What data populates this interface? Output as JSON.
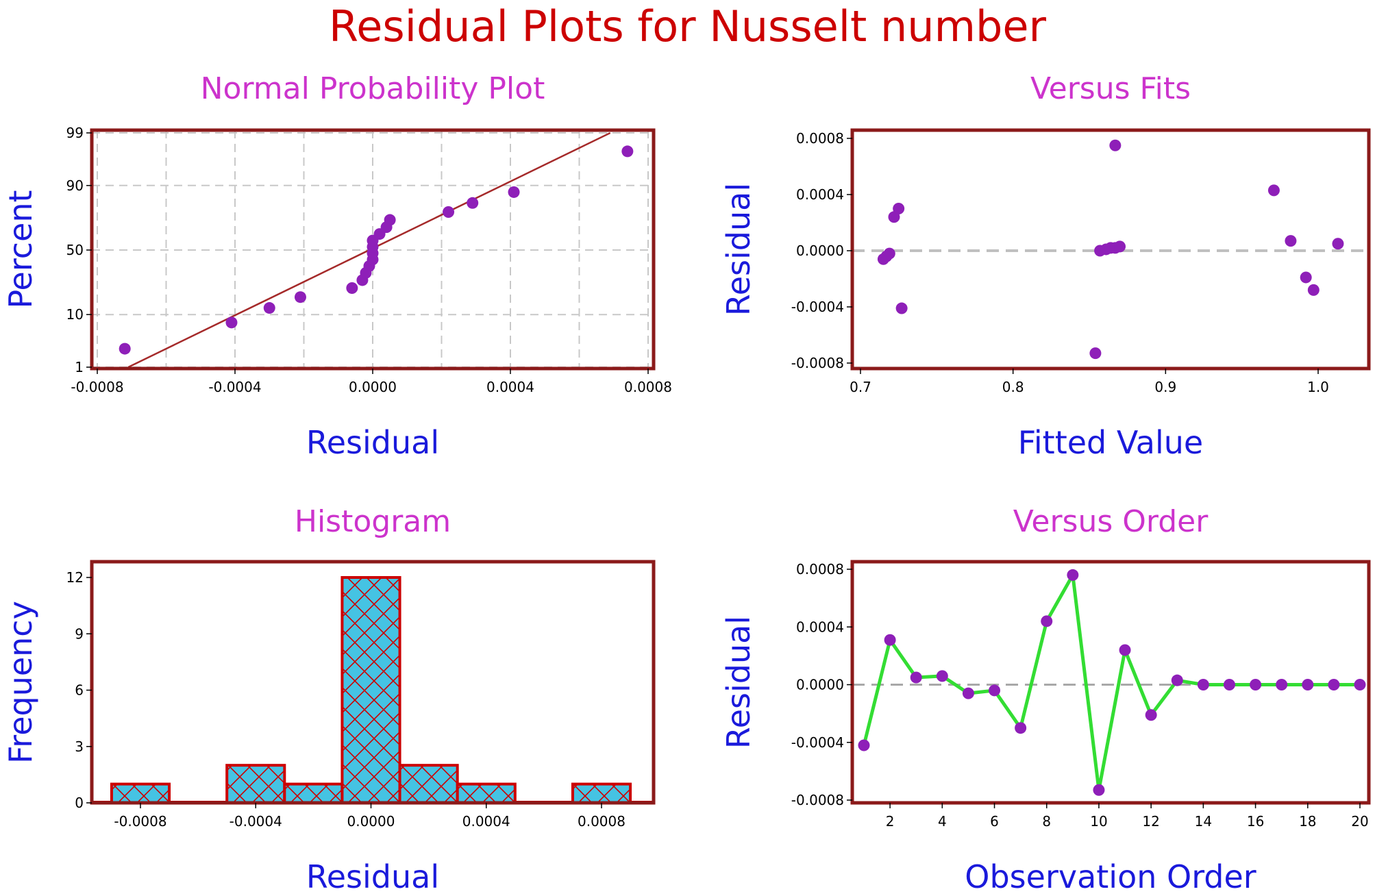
{
  "title": "Residual Plots for Nusselt number",
  "colors": {
    "title": "#cc0000",
    "panel_title": "#cc33cc",
    "axis_label": "#1a1adb",
    "frame": "#8b1a1a",
    "point": "#8e1fb8",
    "fit_line": "#a52a2a",
    "hist_fill": "#45c3e3",
    "hist_edge": "#cc0000",
    "order_line": "#33dd33"
  },
  "chart_data": [
    {
      "type": "scatter",
      "title": "Normal Probability Plot",
      "xlabel": "Residual",
      "ylabel": "Percent",
      "xlim": [
        -0.0008,
        0.0008
      ],
      "ylim": [
        1,
        99
      ],
      "y_scale": "normal-probability",
      "xticks": [
        "-0.0008",
        "-0.0004",
        "0.0000",
        "0.0004",
        "0.0008"
      ],
      "yticks": [
        "1",
        "10",
        "50",
        "90",
        "99"
      ],
      "ytick_values": [
        1,
        10,
        50,
        90,
        99
      ],
      "grid": true,
      "fit_line": [
        [
          -0.00071,
          1
        ],
        [
          0.00069,
          99
        ]
      ],
      "points": [
        [
          -0.00072,
          2.5
        ],
        [
          -0.00041,
          7.5
        ],
        [
          -0.0003,
          12.5
        ],
        [
          -0.00021,
          17.5
        ],
        [
          -6e-05,
          22.5
        ],
        [
          -3e-05,
          27.5
        ],
        [
          -2e-05,
          32.5
        ],
        [
          -1e-05,
          37.5
        ],
        [
          0.0,
          42.5
        ],
        [
          0.0,
          47.5
        ],
        [
          0.0,
          52.5
        ],
        [
          0.0,
          57.5
        ],
        [
          2e-05,
          62.5
        ],
        [
          4e-05,
          67.5
        ],
        [
          5e-05,
          72.5
        ],
        [
          0.00022,
          77.5
        ],
        [
          0.00029,
          82.5
        ],
        [
          0.00041,
          87.5
        ],
        [
          0.00074,
          97.5
        ]
      ]
    },
    {
      "type": "scatter",
      "title": "Versus Fits",
      "xlabel": "Fitted Value",
      "ylabel": "Residual",
      "xlim": [
        0.7,
        1.013
      ],
      "ylim": [
        -0.0008,
        0.0008
      ],
      "xticks": [
        "0.7",
        "0.8",
        "0.9",
        "1.0"
      ],
      "xtick_values": [
        0.7,
        0.8,
        0.9,
        1.0
      ],
      "yticks": [
        "-0.0008",
        "-0.0004",
        "0.0000",
        "0.0004",
        "0.0008"
      ],
      "ytick_values": [
        -0.0008,
        -0.0004,
        0,
        0.0004,
        0.0008
      ],
      "reference_line": 0,
      "points": [
        [
          0.715,
          -6e-05
        ],
        [
          0.717,
          -4e-05
        ],
        [
          0.719,
          -2e-05
        ],
        [
          0.722,
          0.00024
        ],
        [
          0.725,
          0.0003
        ],
        [
          0.727,
          -0.00041
        ],
        [
          0.854,
          -0.00073
        ],
        [
          0.857,
          0.0
        ],
        [
          0.861,
          1e-05
        ],
        [
          0.864,
          2e-05
        ],
        [
          0.867,
          2e-05
        ],
        [
          0.867,
          0.00075
        ],
        [
          0.87,
          3e-05
        ],
        [
          0.971,
          0.00043
        ],
        [
          0.982,
          7e-05
        ],
        [
          0.992,
          -0.00019
        ],
        [
          0.997,
          -0.00028
        ],
        [
          1.013,
          5e-05
        ]
      ]
    },
    {
      "type": "bar",
      "title": "Histogram",
      "xlabel": "Residual",
      "ylabel": "Frequency",
      "xlim": [
        -0.00092,
        0.00092
      ],
      "ylim": [
        0,
        12.6
      ],
      "xticks": [
        "-0.0008",
        "-0.0004",
        "0.0000",
        "0.0004",
        "0.0008"
      ],
      "xtick_values": [
        -0.0008,
        -0.0004,
        0,
        0.0004,
        0.0008
      ],
      "yticks": [
        "0",
        "3",
        "6",
        "9",
        "12"
      ],
      "ytick_values": [
        0,
        3,
        6,
        9,
        12
      ],
      "bin_width": 0.0002,
      "bins": [
        {
          "center": -0.0008,
          "count": 1
        },
        {
          "center": -0.0006,
          "count": 0
        },
        {
          "center": -0.0004,
          "count": 2
        },
        {
          "center": -0.0002,
          "count": 1
        },
        {
          "center": 0.0,
          "count": 12
        },
        {
          "center": 0.0002,
          "count": 2
        },
        {
          "center": 0.0004,
          "count": 1
        },
        {
          "center": 0.0006,
          "count": 0
        },
        {
          "center": 0.0008,
          "count": 1
        }
      ]
    },
    {
      "type": "line",
      "title": "Versus Order",
      "xlabel": "Observation Order",
      "ylabel": "Residual",
      "xlim": [
        1,
        20
      ],
      "ylim": [
        -0.0008,
        0.0008
      ],
      "xticks": [
        "2",
        "4",
        "6",
        "8",
        "10",
        "12",
        "14",
        "16",
        "18",
        "20"
      ],
      "xtick_values": [
        2,
        4,
        6,
        8,
        10,
        12,
        14,
        16,
        18,
        20
      ],
      "yticks": [
        "-0.0008",
        "-0.0004",
        "0.0000",
        "0.0004",
        "0.0008"
      ],
      "ytick_values": [
        -0.0008,
        -0.0004,
        0,
        0.0004,
        0.0008
      ],
      "reference_line": 0,
      "x": [
        1,
        2,
        3,
        4,
        5,
        6,
        7,
        8,
        9,
        10,
        11,
        12,
        13,
        14,
        15,
        16,
        17,
        18,
        19,
        20
      ],
      "values": [
        -0.00042,
        0.00031,
        5e-05,
        6e-05,
        -6e-05,
        -4e-05,
        -0.0003,
        0.00044,
        0.00076,
        -0.00073,
        0.00024,
        -0.00021,
        3e-05,
        0.0,
        0.0,
        0.0,
        0.0,
        0.0,
        0.0,
        0.0
      ]
    }
  ]
}
